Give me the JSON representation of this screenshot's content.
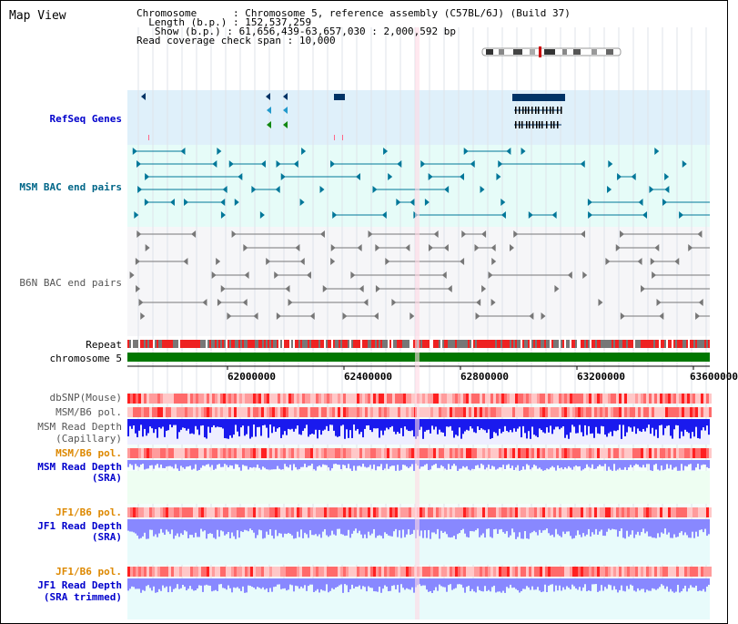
{
  "view_title": "Map View",
  "info": {
    "chromosome_label": "Chromosome",
    "chromosome_value": "Chromosome 5, reference assembly (C57BL/6J) (Build 37)",
    "length_label": "Length (b.p.)",
    "length_value": "152,537,259",
    "show_label": "Show (b.p.)",
    "show_value": "61,656,439-63,657,030 : 2,000,592 bp",
    "coverage_label": "Read coverage check span",
    "coverage_value": "10,000"
  },
  "tracks": {
    "refseq": "RefSeq Genes",
    "msm_bac": "MSM BAC end pairs",
    "b6n_bac": "B6N BAC end pairs",
    "repeat": "Repeat",
    "chromosome": "chromosome 5",
    "dbsnp": "dbSNP(Mouse)",
    "msm_b6_pol_1": "MSM/B6 pol.",
    "msm_depth_cap_1": "MSM Read Depth",
    "msm_depth_cap_2": "(Capillary)",
    "msm_b6_pol_2": "MSM/B6 pol.",
    "msm_depth_sra_1": "MSM Read Depth",
    "msm_depth_sra_2": "(SRA)",
    "jf1_b6_pol_1": "JF1/B6 pol.",
    "jf1_depth_sra_1": "JF1 Read Depth",
    "jf1_depth_sra_2": "(SRA)",
    "jf1_b6_pol_2": "JF1/B6 pol.",
    "jf1_depth_trim_1": "JF1 Read Depth",
    "jf1_depth_trim_2": "(SRA trimmed)"
  },
  "axis_ticks": [
    "62000000",
    "62400000",
    "62800000",
    "63200000",
    "63600000"
  ],
  "colors": {
    "refseq_bg": "#dff0fa",
    "msm_bg": "#e6fcf8",
    "b6n_bg": "#f6f6f8",
    "depth_bg": "#eefef2",
    "gene": "#003366",
    "msm_pair": "#007799",
    "b6n_pair": "#777777",
    "repeat_red": "#ee2222",
    "repeat_grey": "#777777",
    "chromosome": "#007700",
    "depth_capillary": "#1a1aee",
    "depth_sra": "#8888ff"
  }
}
